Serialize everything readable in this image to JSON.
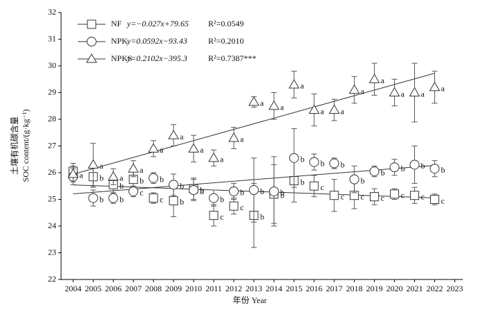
{
  "chart_data": {
    "type": "scatter",
    "x_label": "年份 Year",
    "y_label": [
      "土壤有机碳含量",
      "SOC content/(g·kg⁻¹)"
    ],
    "x": [
      2004,
      2005,
      2006,
      2007,
      2008,
      2009,
      2010,
      2011,
      2012,
      2013,
      2014,
      2015,
      2016,
      2017,
      2018,
      2019,
      2020,
      2021,
      2022
    ],
    "xlim": [
      2003.4,
      2023.4
    ],
    "xticks": [
      2004,
      2005,
      2006,
      2007,
      2008,
      2009,
      2010,
      2011,
      2012,
      2013,
      2014,
      2015,
      2016,
      2017,
      2018,
      2019,
      2020,
      2021,
      2022,
      2023
    ],
    "ylim": [
      22,
      32
    ],
    "yticks": [
      22,
      23,
      24,
      25,
      26,
      27,
      28,
      29,
      30,
      31,
      32
    ],
    "series": [
      {
        "name": "NF",
        "marker": "square",
        "color": "#333333",
        "values": [
          26.05,
          25.85,
          25.55,
          25.75,
          25.05,
          24.95,
          25.4,
          24.4,
          24.75,
          24.4,
          25.2,
          25.7,
          25.5,
          25.15,
          25.15,
          25.1,
          25.2,
          25.15,
          25.0
        ],
        "errors": [
          0.3,
          0.4,
          0.3,
          0.3,
          0.2,
          0.6,
          0.4,
          0.4,
          0.3,
          1.2,
          1.1,
          0.8,
          0.4,
          0.6,
          0.5,
          0.3,
          0.2,
          0.3,
          0.2
        ],
        "letters": [
          null,
          "b",
          "b",
          "b",
          "c",
          "b",
          "b",
          "c",
          "c",
          "b",
          "b",
          "b",
          "c",
          "c",
          "c",
          "c",
          "c",
          "c",
          "c"
        ],
        "slope": -0.027,
        "intercept": 79.65,
        "equation_label": "y=−0.027x+79.65",
        "r2_label": "R²=0.0549"
      },
      {
        "name": "NPK",
        "marker": "circle",
        "color": "#333333",
        "values": [
          25.85,
          25.05,
          25.05,
          25.3,
          25.8,
          25.55,
          25.35,
          25.05,
          25.3,
          25.35,
          25.3,
          26.55,
          26.4,
          26.35,
          25.75,
          26.05,
          26.2,
          26.3,
          26.15
        ],
        "errors": [
          0.3,
          0.3,
          0.2,
          0.2,
          0.2,
          0.4,
          0.4,
          0.3,
          0.3,
          1.2,
          1.3,
          1.1,
          0.3,
          0.2,
          0.5,
          0.2,
          0.3,
          0.7,
          0.3
        ],
        "letters": [
          null,
          "b",
          "b",
          "c",
          "b",
          "b",
          "b",
          "b",
          "b",
          "b",
          "b",
          "b",
          "b",
          "b",
          "b",
          "b",
          "b",
          "b",
          "b"
        ],
        "slope": 0.0592,
        "intercept": -93.43,
        "equation_label": "y=0.0592x−93.43",
        "r2_label": "R²=0.2010"
      },
      {
        "name": "NPKS",
        "marker": "triangle",
        "color": "#333333",
        "values": [
          25.95,
          26.3,
          25.85,
          26.15,
          26.9,
          27.4,
          26.9,
          26.55,
          27.3,
          28.65,
          28.5,
          29.3,
          28.35,
          28.35,
          29.1,
          29.5,
          29.0,
          29.0,
          29.2
        ],
        "errors": [
          0.3,
          0.8,
          0.3,
          0.3,
          0.3,
          0.4,
          0.5,
          0.3,
          0.4,
          0.2,
          0.5,
          0.5,
          0.6,
          0.4,
          0.5,
          0.6,
          0.5,
          1.1,
          0.6
        ],
        "letters": [
          "a",
          "a",
          "a",
          "a",
          "a",
          "a",
          "a",
          "a",
          "a",
          "a",
          "a",
          "a",
          "a",
          "a",
          "a",
          "a",
          "a",
          "a",
          "a"
        ],
        "slope": 0.2102,
        "intercept": -395.3,
        "equation_label": "y=0.2102x−395.3",
        "r2_label": "R²=0.7387***"
      }
    ]
  }
}
